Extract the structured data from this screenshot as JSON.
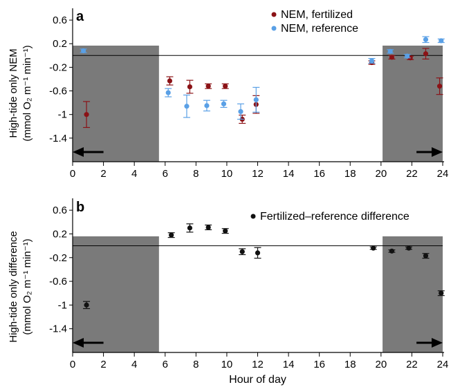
{
  "chart_data": [
    {
      "type": "scatter",
      "panel_label": "a",
      "ylabel_line1": "High-tide only NEM",
      "ylabel_line2": "(mmol O₂ m⁻¹ min⁻¹)",
      "xlim": [
        0,
        24
      ],
      "ylim": [
        -1.8,
        0.8
      ],
      "x_ticks": [
        0,
        2,
        4,
        6,
        8,
        10,
        12,
        14,
        16,
        18,
        20,
        22,
        24
      ],
      "y_ticks": [
        0.6,
        0.2,
        -0.2,
        -0.6,
        -1,
        -1.4
      ],
      "y_tick_labels": [
        "0.6",
        "0.2",
        "-0.2",
        "-0.6",
        "-1",
        "-1.4"
      ],
      "shaded_intervals": [
        [
          0,
          5.6
        ],
        [
          20.1,
          24
        ]
      ],
      "arrows": [
        {
          "from": 2,
          "to": 0
        },
        {
          "from": 22.3,
          "to": 24
        }
      ],
      "legend_position": "top-right",
      "series": [
        {
          "name": "NEM, fertilized",
          "color": "#8b1216",
          "points": [
            {
              "x": 0.9,
              "y": -1.0,
              "err": 0.22
            },
            {
              "x": 6.3,
              "y": -0.43,
              "err": 0.07
            },
            {
              "x": 7.6,
              "y": -0.53,
              "err": 0.11
            },
            {
              "x": 8.8,
              "y": -0.52,
              "err": 0.04
            },
            {
              "x": 9.9,
              "y": -0.52,
              "err": 0.04
            },
            {
              "x": 11.0,
              "y": -1.08,
              "err": 0.07
            },
            {
              "x": 11.9,
              "y": -0.83,
              "err": 0.15
            },
            {
              "x": 19.4,
              "y": -0.12,
              "err": 0.03
            },
            {
              "x": 20.7,
              "y": -0.03,
              "err": 0.03
            },
            {
              "x": 21.9,
              "y": -0.04,
              "err": 0.03
            },
            {
              "x": 22.9,
              "y": 0.03,
              "err": 0.09
            },
            {
              "x": 23.8,
              "y": -0.52,
              "err": 0.14
            }
          ]
        },
        {
          "name": "NEM, reference",
          "color": "#5aa0e6",
          "points": [
            {
              "x": 0.7,
              "y": 0.08,
              "err": 0.03
            },
            {
              "x": 6.2,
              "y": -0.63,
              "err": 0.07
            },
            {
              "x": 7.4,
              "y": -0.86,
              "err": 0.19
            },
            {
              "x": 8.7,
              "y": -0.85,
              "err": 0.09
            },
            {
              "x": 9.8,
              "y": -0.82,
              "err": 0.06
            },
            {
              "x": 10.9,
              "y": -0.95,
              "err": 0.13
            },
            {
              "x": 11.9,
              "y": -0.75,
              "err": 0.21
            },
            {
              "x": 19.4,
              "y": -0.09,
              "err": 0.04
            },
            {
              "x": 20.6,
              "y": 0.07,
              "err": 0.03
            },
            {
              "x": 21.7,
              "y": -0.01,
              "err": 0.03
            },
            {
              "x": 22.9,
              "y": 0.27,
              "err": 0.05
            },
            {
              "x": 23.9,
              "y": 0.25,
              "err": 0.03
            }
          ]
        }
      ]
    },
    {
      "type": "scatter",
      "panel_label": "b",
      "ylabel_line1": "High-tide only difference",
      "ylabel_line2": "(mmol O₂ m⁻¹ min⁻¹)",
      "xlabel": "Hour of day",
      "xlim": [
        0,
        24
      ],
      "ylim": [
        -1.8,
        0.8
      ],
      "x_ticks": [
        0,
        2,
        4,
        6,
        8,
        10,
        12,
        14,
        16,
        18,
        20,
        22,
        24
      ],
      "y_ticks": [
        0.6,
        0.2,
        -0.2,
        -0.6,
        -1,
        -1.4
      ],
      "y_tick_labels": [
        "0.6",
        "0.2",
        "-0.2",
        "-0.6",
        "-1",
        "-1.4"
      ],
      "shaded_intervals": [
        [
          0,
          5.6
        ],
        [
          20.1,
          24
        ]
      ],
      "arrows": [
        {
          "from": 2,
          "to": 0
        },
        {
          "from": 22.3,
          "to": 24
        }
      ],
      "legend_position": "top-right",
      "series": [
        {
          "name": "Fertilized–reference difference",
          "color": "#111111",
          "points": [
            {
              "x": 0.9,
              "y": -1.0,
              "err": 0.06
            },
            {
              "x": 6.4,
              "y": 0.18,
              "err": 0.04
            },
            {
              "x": 7.6,
              "y": 0.3,
              "err": 0.07
            },
            {
              "x": 8.8,
              "y": 0.31,
              "err": 0.04
            },
            {
              "x": 9.9,
              "y": 0.25,
              "err": 0.04
            },
            {
              "x": 11.0,
              "y": -0.1,
              "err": 0.05
            },
            {
              "x": 12.0,
              "y": -0.12,
              "err": 0.09
            },
            {
              "x": 19.5,
              "y": -0.04,
              "err": 0.02
            },
            {
              "x": 20.7,
              "y": -0.09,
              "err": 0.02
            },
            {
              "x": 21.8,
              "y": -0.04,
              "err": 0.02
            },
            {
              "x": 22.9,
              "y": -0.17,
              "err": 0.04
            },
            {
              "x": 23.9,
              "y": -0.8,
              "err": 0.04
            }
          ]
        }
      ]
    }
  ]
}
